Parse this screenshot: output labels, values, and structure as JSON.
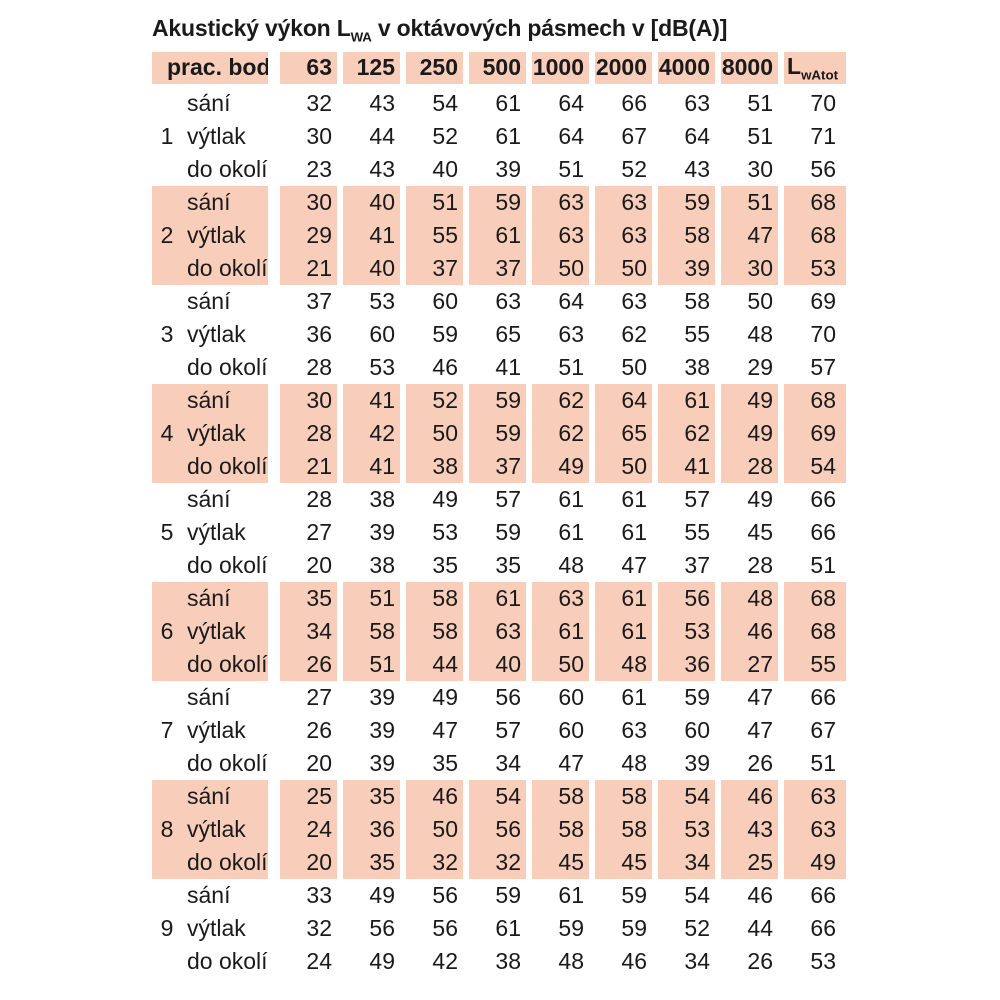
{
  "title": {
    "prefix": "Akustický výkon L",
    "subscript": "WA",
    "suffix": " v oktávových pásmech v [dB(A)]"
  },
  "table": {
    "header": {
      "col0": "prac. bod",
      "bands": [
        "63",
        "125",
        "250",
        "500",
        "1000",
        "2000",
        "4000",
        "8000"
      ],
      "total": {
        "prefix": "L",
        "subscript": "wAtot"
      }
    },
    "row_labels": [
      "sání",
      "výtlak",
      "do okolí"
    ],
    "groups": [
      {
        "id": "1",
        "shaded": false,
        "rows": [
          [
            32,
            43,
            54,
            61,
            64,
            66,
            63,
            51,
            70
          ],
          [
            30,
            44,
            52,
            61,
            64,
            67,
            64,
            51,
            71
          ],
          [
            23,
            43,
            40,
            39,
            51,
            52,
            43,
            30,
            56
          ]
        ]
      },
      {
        "id": "2",
        "shaded": true,
        "rows": [
          [
            30,
            40,
            51,
            59,
            63,
            63,
            59,
            51,
            68
          ],
          [
            29,
            41,
            55,
            61,
            63,
            63,
            58,
            47,
            68
          ],
          [
            21,
            40,
            37,
            37,
            50,
            50,
            39,
            30,
            53
          ]
        ]
      },
      {
        "id": "3",
        "shaded": false,
        "rows": [
          [
            37,
            53,
            60,
            63,
            64,
            63,
            58,
            50,
            69
          ],
          [
            36,
            60,
            59,
            65,
            63,
            62,
            55,
            48,
            70
          ],
          [
            28,
            53,
            46,
            41,
            51,
            50,
            38,
            29,
            57
          ]
        ]
      },
      {
        "id": "4",
        "shaded": true,
        "rows": [
          [
            30,
            41,
            52,
            59,
            62,
            64,
            61,
            49,
            68
          ],
          [
            28,
            42,
            50,
            59,
            62,
            65,
            62,
            49,
            69
          ],
          [
            21,
            41,
            38,
            37,
            49,
            50,
            41,
            28,
            54
          ]
        ]
      },
      {
        "id": "5",
        "shaded": false,
        "rows": [
          [
            28,
            38,
            49,
            57,
            61,
            61,
            57,
            49,
            66
          ],
          [
            27,
            39,
            53,
            59,
            61,
            61,
            55,
            45,
            66
          ],
          [
            20,
            38,
            35,
            35,
            48,
            47,
            37,
            28,
            51
          ]
        ]
      },
      {
        "id": "6",
        "shaded": true,
        "rows": [
          [
            35,
            51,
            58,
            61,
            63,
            61,
            56,
            48,
            68
          ],
          [
            34,
            58,
            58,
            63,
            61,
            61,
            53,
            46,
            68
          ],
          [
            26,
            51,
            44,
            40,
            50,
            48,
            36,
            27,
            55
          ]
        ]
      },
      {
        "id": "7",
        "shaded": false,
        "rows": [
          [
            27,
            39,
            49,
            56,
            60,
            61,
            59,
            47,
            66
          ],
          [
            26,
            39,
            47,
            57,
            60,
            63,
            60,
            47,
            67
          ],
          [
            20,
            39,
            35,
            34,
            47,
            48,
            39,
            26,
            51
          ]
        ]
      },
      {
        "id": "8",
        "shaded": true,
        "rows": [
          [
            25,
            35,
            46,
            54,
            58,
            58,
            54,
            46,
            63
          ],
          [
            24,
            36,
            50,
            56,
            58,
            58,
            53,
            43,
            63
          ],
          [
            20,
            35,
            32,
            32,
            45,
            45,
            34,
            25,
            49
          ]
        ]
      },
      {
        "id": "9",
        "shaded": false,
        "rows": [
          [
            33,
            49,
            56,
            59,
            61,
            59,
            54,
            46,
            66
          ],
          [
            32,
            56,
            56,
            61,
            59,
            59,
            52,
            44,
            66
          ],
          [
            24,
            49,
            42,
            38,
            48,
            46,
            34,
            26,
            53
          ]
        ]
      }
    ]
  },
  "colors": {
    "row_shading": "#f8cebb",
    "text": "#1a1a1a",
    "background": "#ffffff"
  }
}
